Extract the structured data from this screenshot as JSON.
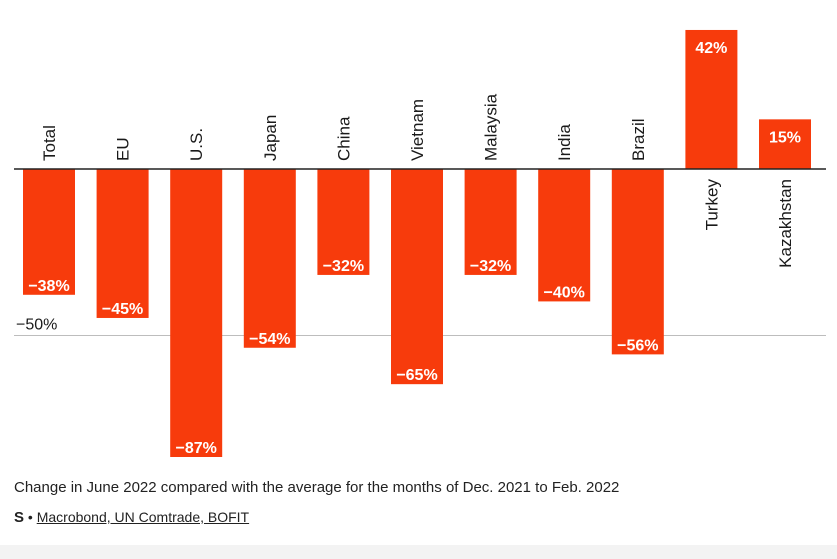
{
  "chart_data": {
    "type": "bar",
    "categories": [
      "Total",
      "EU",
      "U.S.",
      "Japan",
      "China",
      "Vietnam",
      "Malaysia",
      "India",
      "Brazil",
      "Turkey",
      "Kazakhstan"
    ],
    "values": [
      -38,
      -45,
      -87,
      -54,
      -32,
      -65,
      -32,
      -40,
      -56,
      42,
      15
    ],
    "value_labels": [
      "−38%",
      "−45%",
      "−87%",
      "−54%",
      "−32%",
      "−65%",
      "−32%",
      "−40%",
      "−56%",
      "42%",
      "15%"
    ],
    "reference_line": {
      "value": -50,
      "label": "−50%"
    },
    "ylim": [
      -87,
      42
    ],
    "bar_color": "#f73b0c",
    "grid": false,
    "legend": "none"
  },
  "footer": {
    "note": "Change in June 2022 compared with the average for the months of Dec. 2021 to Feb. 2022",
    "source_logo": "S",
    "source_separator": "•",
    "source_text": "Macrobond, UN Comtrade, BOFIT"
  }
}
